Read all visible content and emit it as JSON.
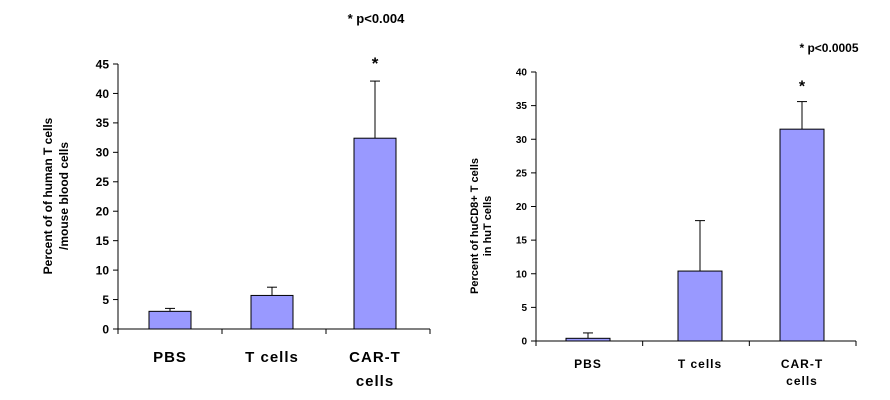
{
  "chart_data": [
    {
      "type": "bar",
      "categories": [
        "PBS",
        "T cells",
        "CAR-T cells"
      ],
      "category_lines": [
        [
          "PBS"
        ],
        [
          "T cells"
        ],
        [
          "CAR-T",
          "cells"
        ]
      ],
      "values": [
        3.0,
        5.7,
        32.4
      ],
      "errors": [
        0.5,
        1.4,
        9.7
      ],
      "ylabel_lines": [
        "Percent of of human T cells",
        "/mouse blood cells"
      ],
      "ylim": [
        0,
        45
      ],
      "yticks": [
        0,
        5,
        10,
        15,
        20,
        25,
        30,
        35,
        40,
        45
      ],
      "significance": "* p<0.004",
      "star": "*",
      "star_index": 2,
      "bar_color": "#9999ff"
    },
    {
      "type": "bar",
      "categories": [
        "PBS",
        "T cells",
        "CAR-T cells"
      ],
      "category_lines": [
        [
          "PBS"
        ],
        [
          "T cells"
        ],
        [
          "CAR-T",
          "cells"
        ]
      ],
      "values": [
        0.4,
        10.4,
        31.5
      ],
      "errors": [
        0.8,
        7.5,
        4.1
      ],
      "ylabel_lines": [
        "Percent of huCD8+ T cells",
        "in huT cells"
      ],
      "ylim": [
        0,
        40
      ],
      "yticks": [
        0,
        5,
        10,
        15,
        20,
        25,
        30,
        35,
        40
      ],
      "significance": "* p<0.0005",
      "star": "*",
      "star_index": 2,
      "bar_color": "#9999ff"
    }
  ]
}
